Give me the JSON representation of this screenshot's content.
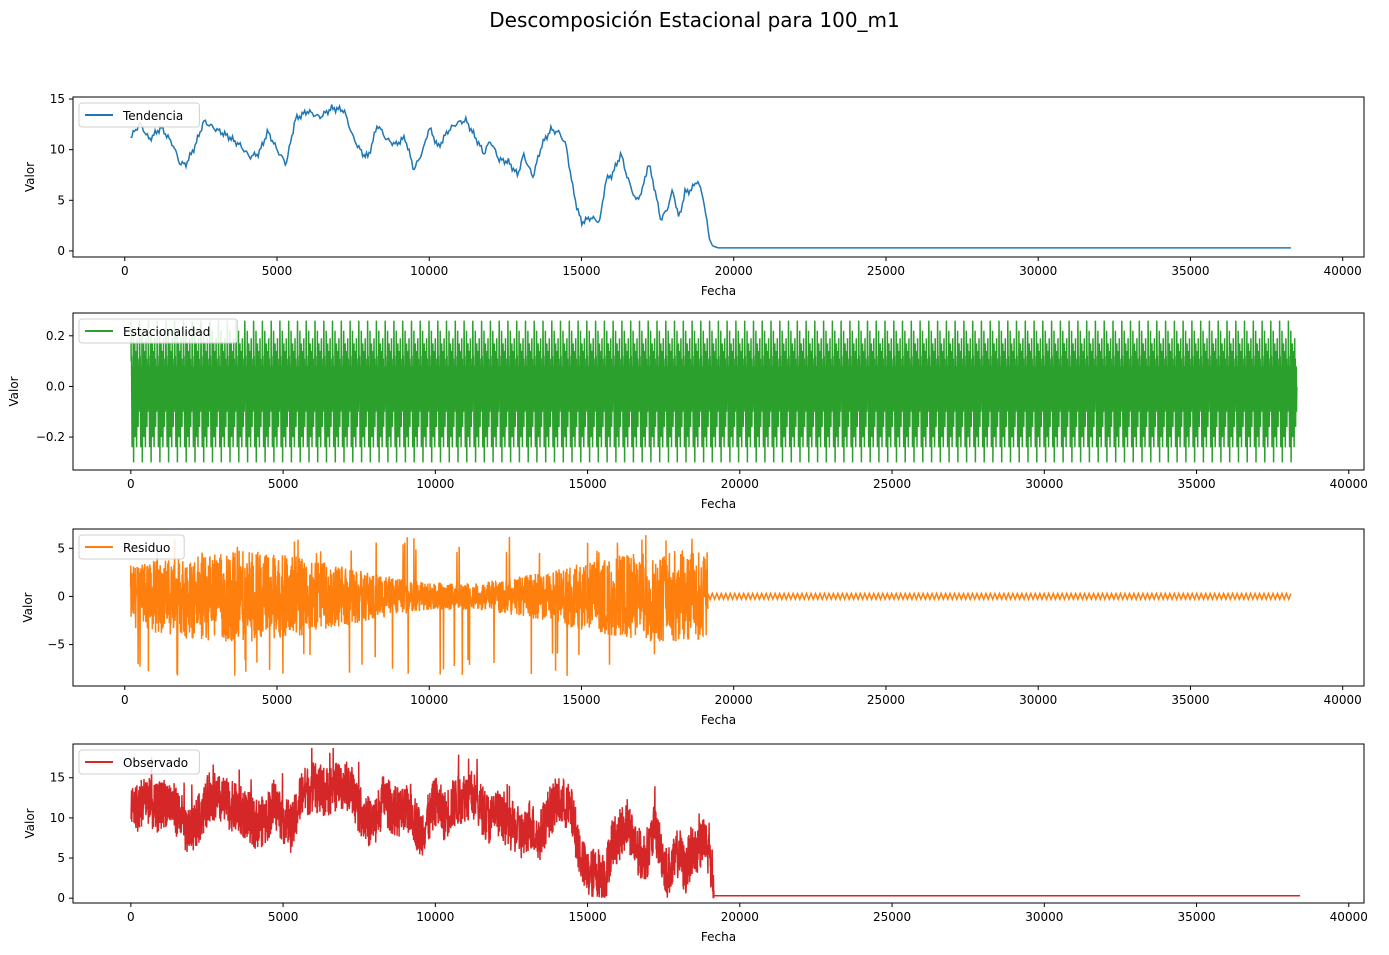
{
  "figure": {
    "title": "Descomposición Estacional para 100_m1"
  },
  "chart_data": [
    {
      "type": "line",
      "title": "",
      "xlabel": "Fecha",
      "ylabel": "Valor",
      "xlim": [
        -1700,
        40700
      ],
      "ylim": [
        -0.6,
        15.2
      ],
      "xticks": [
        0,
        5000,
        10000,
        15000,
        20000,
        25000,
        30000,
        35000,
        40000
      ],
      "xtick_labels": [
        "0",
        "5000",
        "10000",
        "15000",
        "20000",
        "25000",
        "30000",
        "35000",
        "40000"
      ],
      "yticks": [
        0,
        5,
        10,
        15
      ],
      "ytick_labels": [
        "0",
        "5",
        "10",
        "15"
      ],
      "legend": "upper left",
      "grid": false,
      "series": [
        {
          "name": "Tendencia",
          "color": "#1f77b4",
          "style": "smooth",
          "x": [
            192,
            500,
            800,
            1200,
            1600,
            1800,
            2000,
            2300,
            2600,
            3000,
            3400,
            3800,
            4100,
            4400,
            4700,
            5000,
            5300,
            5600,
            6000,
            6400,
            6800,
            7200,
            7500,
            7800,
            8000,
            8300,
            8600,
            8900,
            9200,
            9500,
            9800,
            10000,
            10300,
            10600,
            10900,
            11200,
            11500,
            11800,
            12000,
            12300,
            12600,
            12900,
            13100,
            13400,
            13700,
            14000,
            14300,
            14500,
            14700,
            14850,
            15000,
            15300,
            15600,
            15800,
            16000,
            16300,
            16500,
            16800,
            17000,
            17200,
            17400,
            17600,
            17800,
            18000,
            18200,
            18400,
            18600,
            18800,
            19000,
            19100,
            19200,
            19300,
            19500,
            20000,
            25000,
            30000,
            35000,
            38300
          ],
          "values": [
            11.2,
            12.6,
            11.0,
            12.2,
            10.4,
            8.7,
            8.5,
            10.3,
            12.8,
            12.0,
            11.3,
            10.4,
            9.3,
            9.6,
            11.8,
            10.0,
            8.6,
            13.0,
            13.8,
            13.2,
            14.1,
            13.9,
            11.2,
            9.6,
            9.3,
            12.5,
            11.0,
            10.5,
            11.2,
            8.0,
            10.0,
            12.2,
            10.2,
            11.8,
            12.6,
            12.9,
            11.3,
            9.6,
            10.9,
            9.0,
            8.8,
            7.5,
            9.5,
            7.3,
            10.5,
            12.0,
            11.6,
            10.3,
            6.5,
            4.3,
            2.8,
            3.3,
            2.9,
            7.0,
            7.5,
            9.6,
            7.3,
            4.9,
            6.0,
            8.7,
            6.2,
            3.1,
            4.0,
            6.0,
            3.2,
            5.8,
            6.0,
            7.0,
            5.3,
            3.2,
            1.2,
            0.5,
            0.3,
            0.3,
            0.3,
            0.3,
            0.3,
            0.3
          ]
        }
      ]
    },
    {
      "type": "line",
      "title": "",
      "xlabel": "Fecha",
      "ylabel": "Valor",
      "xlim": [
        -1900,
        40500
      ],
      "ylim": [
        -0.33,
        0.29
      ],
      "xticks": [
        0,
        5000,
        10000,
        15000,
        20000,
        25000,
        30000,
        35000,
        40000
      ],
      "xtick_labels": [
        "0",
        "5000",
        "10000",
        "15000",
        "20000",
        "25000",
        "30000",
        "35000",
        "40000"
      ],
      "yticks": [
        -0.2,
        0.0,
        0.2
      ],
      "ytick_labels": [
        "−0.2",
        "0.0",
        "0.2"
      ],
      "legend": "upper left",
      "grid": false,
      "series": [
        {
          "name": "Estacionalidad",
          "color": "#2ca02c",
          "style": "seasonal",
          "x_start": 0,
          "x_end": 38400,
          "period": 288,
          "values": [
            0.26,
            0.1,
            0.12,
            -0.05,
            -0.24,
            0.05,
            0.08,
            -0.15,
            0.22,
            -0.3,
            0.0,
            0.13,
            -0.08,
            0.17,
            -0.2,
            0.06,
            0.09,
            -0.12,
            0.14,
            -0.24,
            0.0,
            0.19,
            -0.06,
            0.11,
            -0.16,
            0.04,
            0.08,
            -0.1,
            0.0
          ]
        }
      ]
    },
    {
      "type": "line",
      "title": "",
      "xlabel": "Fecha",
      "ylabel": "Valor",
      "xlim": [
        -1700,
        40700
      ],
      "ylim": [
        -9.3,
        7.0
      ],
      "xticks": [
        0,
        5000,
        10000,
        15000,
        20000,
        25000,
        30000,
        35000,
        40000
      ],
      "xtick_labels": [
        "0",
        "5000",
        "10000",
        "15000",
        "20000",
        "25000",
        "30000",
        "35000",
        "40000"
      ],
      "yticks": [
        -5,
        0,
        5
      ],
      "ytick_labels": [
        "−5",
        "0",
        "5"
      ],
      "legend": "upper left",
      "grid": false,
      "series": [
        {
          "name": "Residuo",
          "color": "#ff7f0e",
          "style": "noise",
          "x_start": 192,
          "x_break": 19150,
          "x_end": 38300,
          "max": 6.4,
          "min": -8.3,
          "tail_amplitude": 0.3,
          "values": []
        }
      ]
    },
    {
      "type": "line",
      "title": "",
      "xlabel": "Fecha",
      "ylabel": "Valor",
      "xlim": [
        -1900,
        40500
      ],
      "ylim": [
        -0.6,
        19.2
      ],
      "xticks": [
        0,
        5000,
        10000,
        15000,
        20000,
        25000,
        30000,
        35000,
        40000
      ],
      "xtick_labels": [
        "0",
        "5000",
        "10000",
        "15000",
        "20000",
        "25000",
        "30000",
        "35000",
        "40000"
      ],
      "yticks": [
        0,
        5,
        10,
        15
      ],
      "ytick_labels": [
        "0",
        "5",
        "10",
        "15"
      ],
      "legend": "upper left",
      "grid": false,
      "series": [
        {
          "name": "Observado",
          "color": "#d62728",
          "style": "noisy-trend",
          "x_start": 0,
          "x_break": 19150,
          "x_end": 38400,
          "max": 18.7,
          "min": 0.0,
          "tail_value": 0.3,
          "values": []
        }
      ]
    }
  ]
}
